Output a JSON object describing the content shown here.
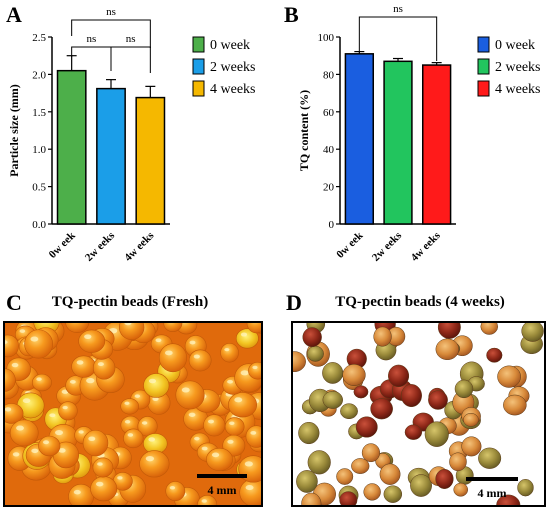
{
  "chart_data": [
    {
      "panel": "A",
      "type": "bar",
      "categories": [
        "0w eek",
        "2w eeks",
        "4w eeks"
      ],
      "values": [
        2.05,
        1.81,
        1.69
      ],
      "errors": [
        0.2,
        0.12,
        0.15
      ],
      "colors": [
        "#4daf4a",
        "#1b9ee8",
        "#f5b800"
      ],
      "ylabel": "Particle size (mm)",
      "ylim": [
        0,
        2.5
      ],
      "yticks": [
        "0.0",
        "0.5",
        "1.0",
        "1.5",
        "2.0",
        "2.5"
      ],
      "legend": [
        "0 week",
        "2 weeks",
        "4 weeks"
      ],
      "legend_placement": "right",
      "annotations": [
        "ns",
        "ns",
        "ns"
      ]
    },
    {
      "panel": "B",
      "type": "bar",
      "categories": [
        "0w eek",
        "2w eeks",
        "4w eeks"
      ],
      "values": [
        91,
        87,
        85
      ],
      "errors": [
        1.2,
        1.5,
        1.3
      ],
      "colors": [
        "#1a5ee0",
        "#22c55e",
        "#ff1a1a"
      ],
      "ylabel": "TQ content (%)",
      "ylim": [
        0,
        100
      ],
      "yticks": [
        "0",
        "20",
        "40",
        "60",
        "80",
        "100"
      ],
      "legend": [
        "0 week",
        "2 weeks",
        "4 weeks"
      ],
      "legend_placement": "right",
      "annotations": [
        "ns"
      ]
    }
  ],
  "panels": {
    "a": "A",
    "b": "B",
    "c": "C",
    "d": "D"
  },
  "photos": {
    "c_title": "TQ-pectin beads (Fresh)",
    "c_scale": "4 mm",
    "d_title": "TQ-pectin beads (4 weeks)",
    "d_scale": "4 mm"
  }
}
